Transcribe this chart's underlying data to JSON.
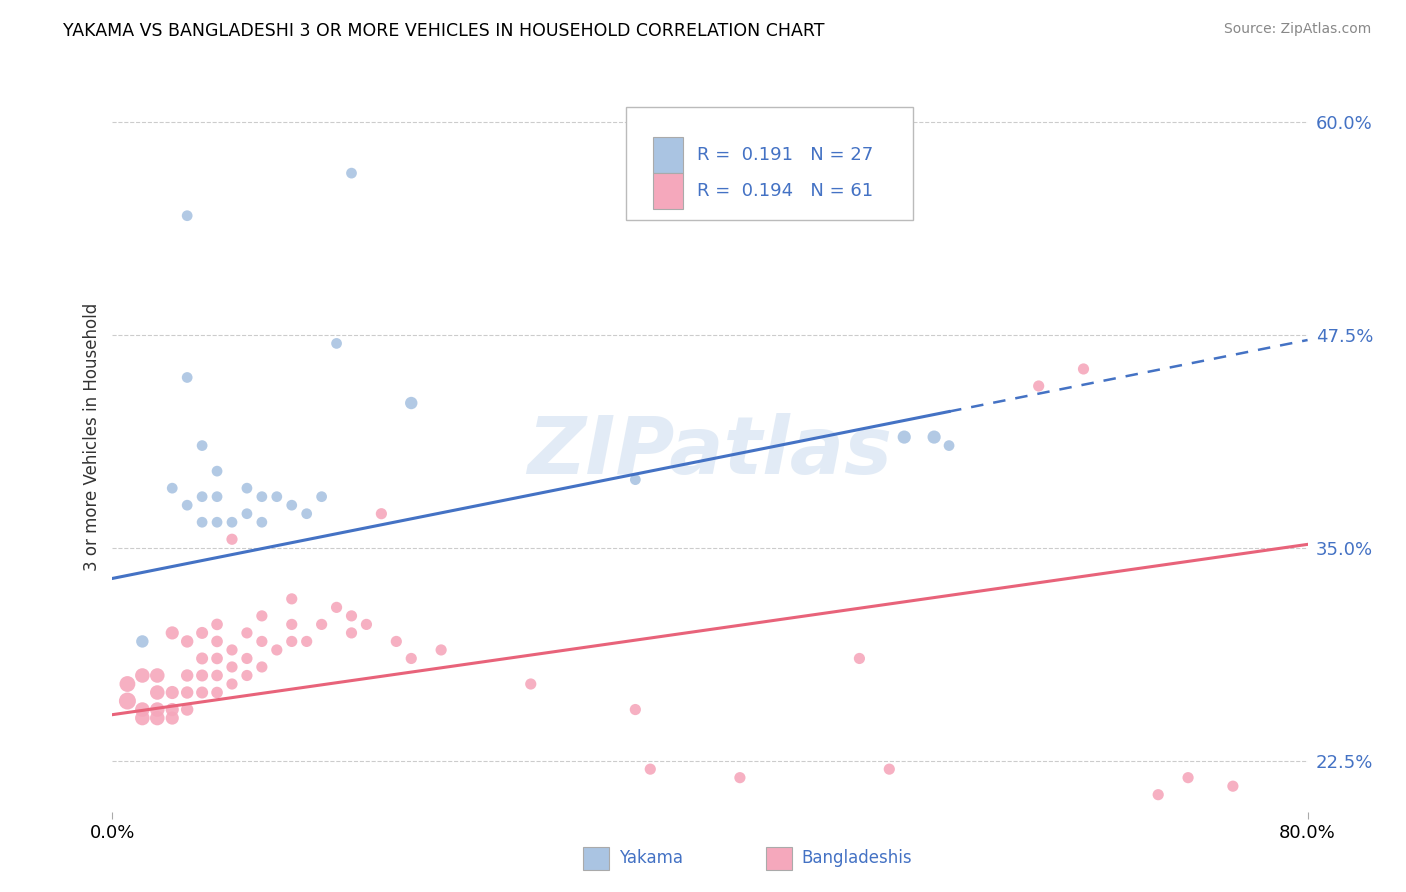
{
  "title": "YAKAMA VS BANGLADESHI 3 OR MORE VEHICLES IN HOUSEHOLD CORRELATION CHART",
  "source": "Source: ZipAtlas.com",
  "ylabel": "3 or more Vehicles in Household",
  "xmin": 0.0,
  "xmax": 0.8,
  "ymin": 0.195,
  "ymax": 0.635,
  "ytick_vals": [
    0.225,
    0.35,
    0.475,
    0.6
  ],
  "ytick_labels": [
    "22.5%",
    "35.0%",
    "47.5%",
    "60.0%"
  ],
  "xtick_vals": [
    0.0,
    0.8
  ],
  "xtick_labels": [
    "0.0%",
    "80.0%"
  ],
  "yakama_R": "0.191",
  "yakama_N": "27",
  "bangladeshi_R": "0.194",
  "bangladeshi_N": "61",
  "yakama_color": "#aac4e2",
  "bangladeshi_color": "#f5a8bc",
  "yakama_line_color": "#4472c4",
  "bangladeshi_line_color": "#e8637a",
  "legend_text_color": "#4472c4",
  "watermark": "ZIPatlas",
  "yakama_x": [
    0.02,
    0.04,
    0.05,
    0.06,
    0.06,
    0.07,
    0.07,
    0.07,
    0.08,
    0.09,
    0.09,
    0.1,
    0.1,
    0.11,
    0.12,
    0.13,
    0.14,
    0.15,
    0.16,
    0.2,
    0.35,
    0.53,
    0.55,
    0.56,
    0.05,
    0.05,
    0.06
  ],
  "yakama_y": [
    0.295,
    0.385,
    0.375,
    0.365,
    0.38,
    0.365,
    0.38,
    0.395,
    0.365,
    0.37,
    0.385,
    0.365,
    0.38,
    0.38,
    0.375,
    0.37,
    0.38,
    0.47,
    0.57,
    0.435,
    0.39,
    0.415,
    0.415,
    0.41,
    0.45,
    0.545,
    0.41
  ],
  "bangladeshi_x": [
    0.01,
    0.01,
    0.02,
    0.02,
    0.02,
    0.03,
    0.03,
    0.03,
    0.03,
    0.04,
    0.04,
    0.04,
    0.04,
    0.05,
    0.05,
    0.05,
    0.05,
    0.06,
    0.06,
    0.06,
    0.06,
    0.07,
    0.07,
    0.07,
    0.07,
    0.07,
    0.08,
    0.08,
    0.08,
    0.08,
    0.09,
    0.09,
    0.09,
    0.1,
    0.1,
    0.1,
    0.11,
    0.12,
    0.12,
    0.12,
    0.13,
    0.14,
    0.15,
    0.16,
    0.16,
    0.17,
    0.18,
    0.19,
    0.2,
    0.22,
    0.28,
    0.35,
    0.36,
    0.42,
    0.5,
    0.52,
    0.62,
    0.65,
    0.7,
    0.72,
    0.75
  ],
  "bangladeshi_y": [
    0.26,
    0.27,
    0.25,
    0.255,
    0.275,
    0.25,
    0.255,
    0.265,
    0.275,
    0.25,
    0.255,
    0.265,
    0.3,
    0.255,
    0.265,
    0.275,
    0.295,
    0.265,
    0.275,
    0.285,
    0.3,
    0.265,
    0.275,
    0.285,
    0.295,
    0.305,
    0.27,
    0.28,
    0.29,
    0.355,
    0.275,
    0.285,
    0.3,
    0.28,
    0.295,
    0.31,
    0.29,
    0.295,
    0.305,
    0.32,
    0.295,
    0.305,
    0.315,
    0.3,
    0.31,
    0.305,
    0.37,
    0.295,
    0.285,
    0.29,
    0.27,
    0.255,
    0.22,
    0.215,
    0.285,
    0.22,
    0.445,
    0.455,
    0.205,
    0.215,
    0.21
  ],
  "background_color": "#ffffff",
  "grid_color": "#cccccc",
  "yakama_sizes": [
    80,
    60,
    60,
    60,
    60,
    60,
    60,
    60,
    60,
    60,
    60,
    60,
    60,
    60,
    60,
    60,
    60,
    60,
    60,
    80,
    60,
    90,
    90,
    60,
    60,
    60,
    60
  ],
  "bangladeshi_sizes": [
    150,
    130,
    110,
    110,
    110,
    110,
    110,
    110,
    110,
    90,
    90,
    90,
    90,
    80,
    80,
    80,
    80,
    75,
    75,
    75,
    75,
    70,
    70,
    70,
    70,
    70,
    65,
    65,
    65,
    65,
    65,
    65,
    65,
    65,
    65,
    65,
    65,
    65,
    65,
    65,
    65,
    65,
    65,
    65,
    65,
    65,
    65,
    65,
    65,
    65,
    65,
    65,
    65,
    65,
    65,
    65,
    65,
    65,
    65,
    65,
    65
  ],
  "blue_line_x0": 0.0,
  "blue_line_y0": 0.332,
  "blue_line_x1": 0.8,
  "blue_line_y1": 0.472,
  "pink_line_x0": 0.0,
  "pink_line_y0": 0.252,
  "pink_line_x1": 0.8,
  "pink_line_y1": 0.352
}
